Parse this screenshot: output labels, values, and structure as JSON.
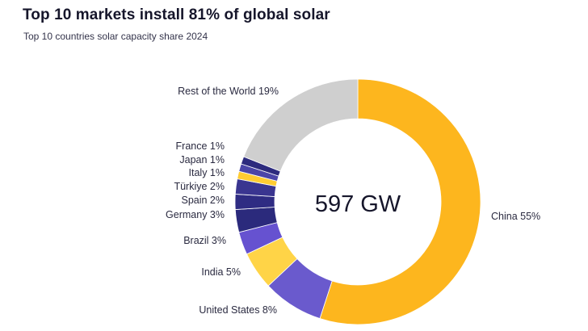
{
  "header": {
    "title": "Top 10 markets install 81% of global solar",
    "subtitle": "Top 10 countries solar capacity share 2024"
  },
  "chart_data": {
    "type": "pie",
    "subtype": "donut",
    "title": "Top 10 markets install 81% of global solar",
    "subtitle": "Top 10 countries solar capacity share 2024",
    "center_label": "597 GW",
    "unit": "%",
    "slices": [
      {
        "name": "China",
        "value": 55,
        "label": "China 55%",
        "color": "#FDB61E"
      },
      {
        "name": "United States",
        "value": 8,
        "label": "United States 8%",
        "color": "#6A5ACD"
      },
      {
        "name": "India",
        "value": 5,
        "label": "India 5%",
        "color": "#FFD447"
      },
      {
        "name": "Brazil",
        "value": 3,
        "label": "Brazil 3%",
        "color": "#6652D0"
      },
      {
        "name": "Germany",
        "value": 3,
        "label": "Germany 3%",
        "color": "#2B2A7C"
      },
      {
        "name": "Spain",
        "value": 2,
        "label": "Spain 2%",
        "color": "#2F2C83"
      },
      {
        "name": "Türkiye",
        "value": 2,
        "label": "Türkiye 2%",
        "color": "#3A3590"
      },
      {
        "name": "Italy",
        "value": 1,
        "label": "Italy 1%",
        "color": "#FFCC33"
      },
      {
        "name": "Japan",
        "value": 1,
        "label": "Japan 1%",
        "color": "#4B45A8"
      },
      {
        "name": "France",
        "value": 1,
        "label": "France 1%",
        "color": "#2D2B7E"
      },
      {
        "name": "Rest of the World",
        "value": 19,
        "label": "Rest of the World 19%",
        "color": "#CFCFCF"
      }
    ],
    "legend": "none"
  }
}
